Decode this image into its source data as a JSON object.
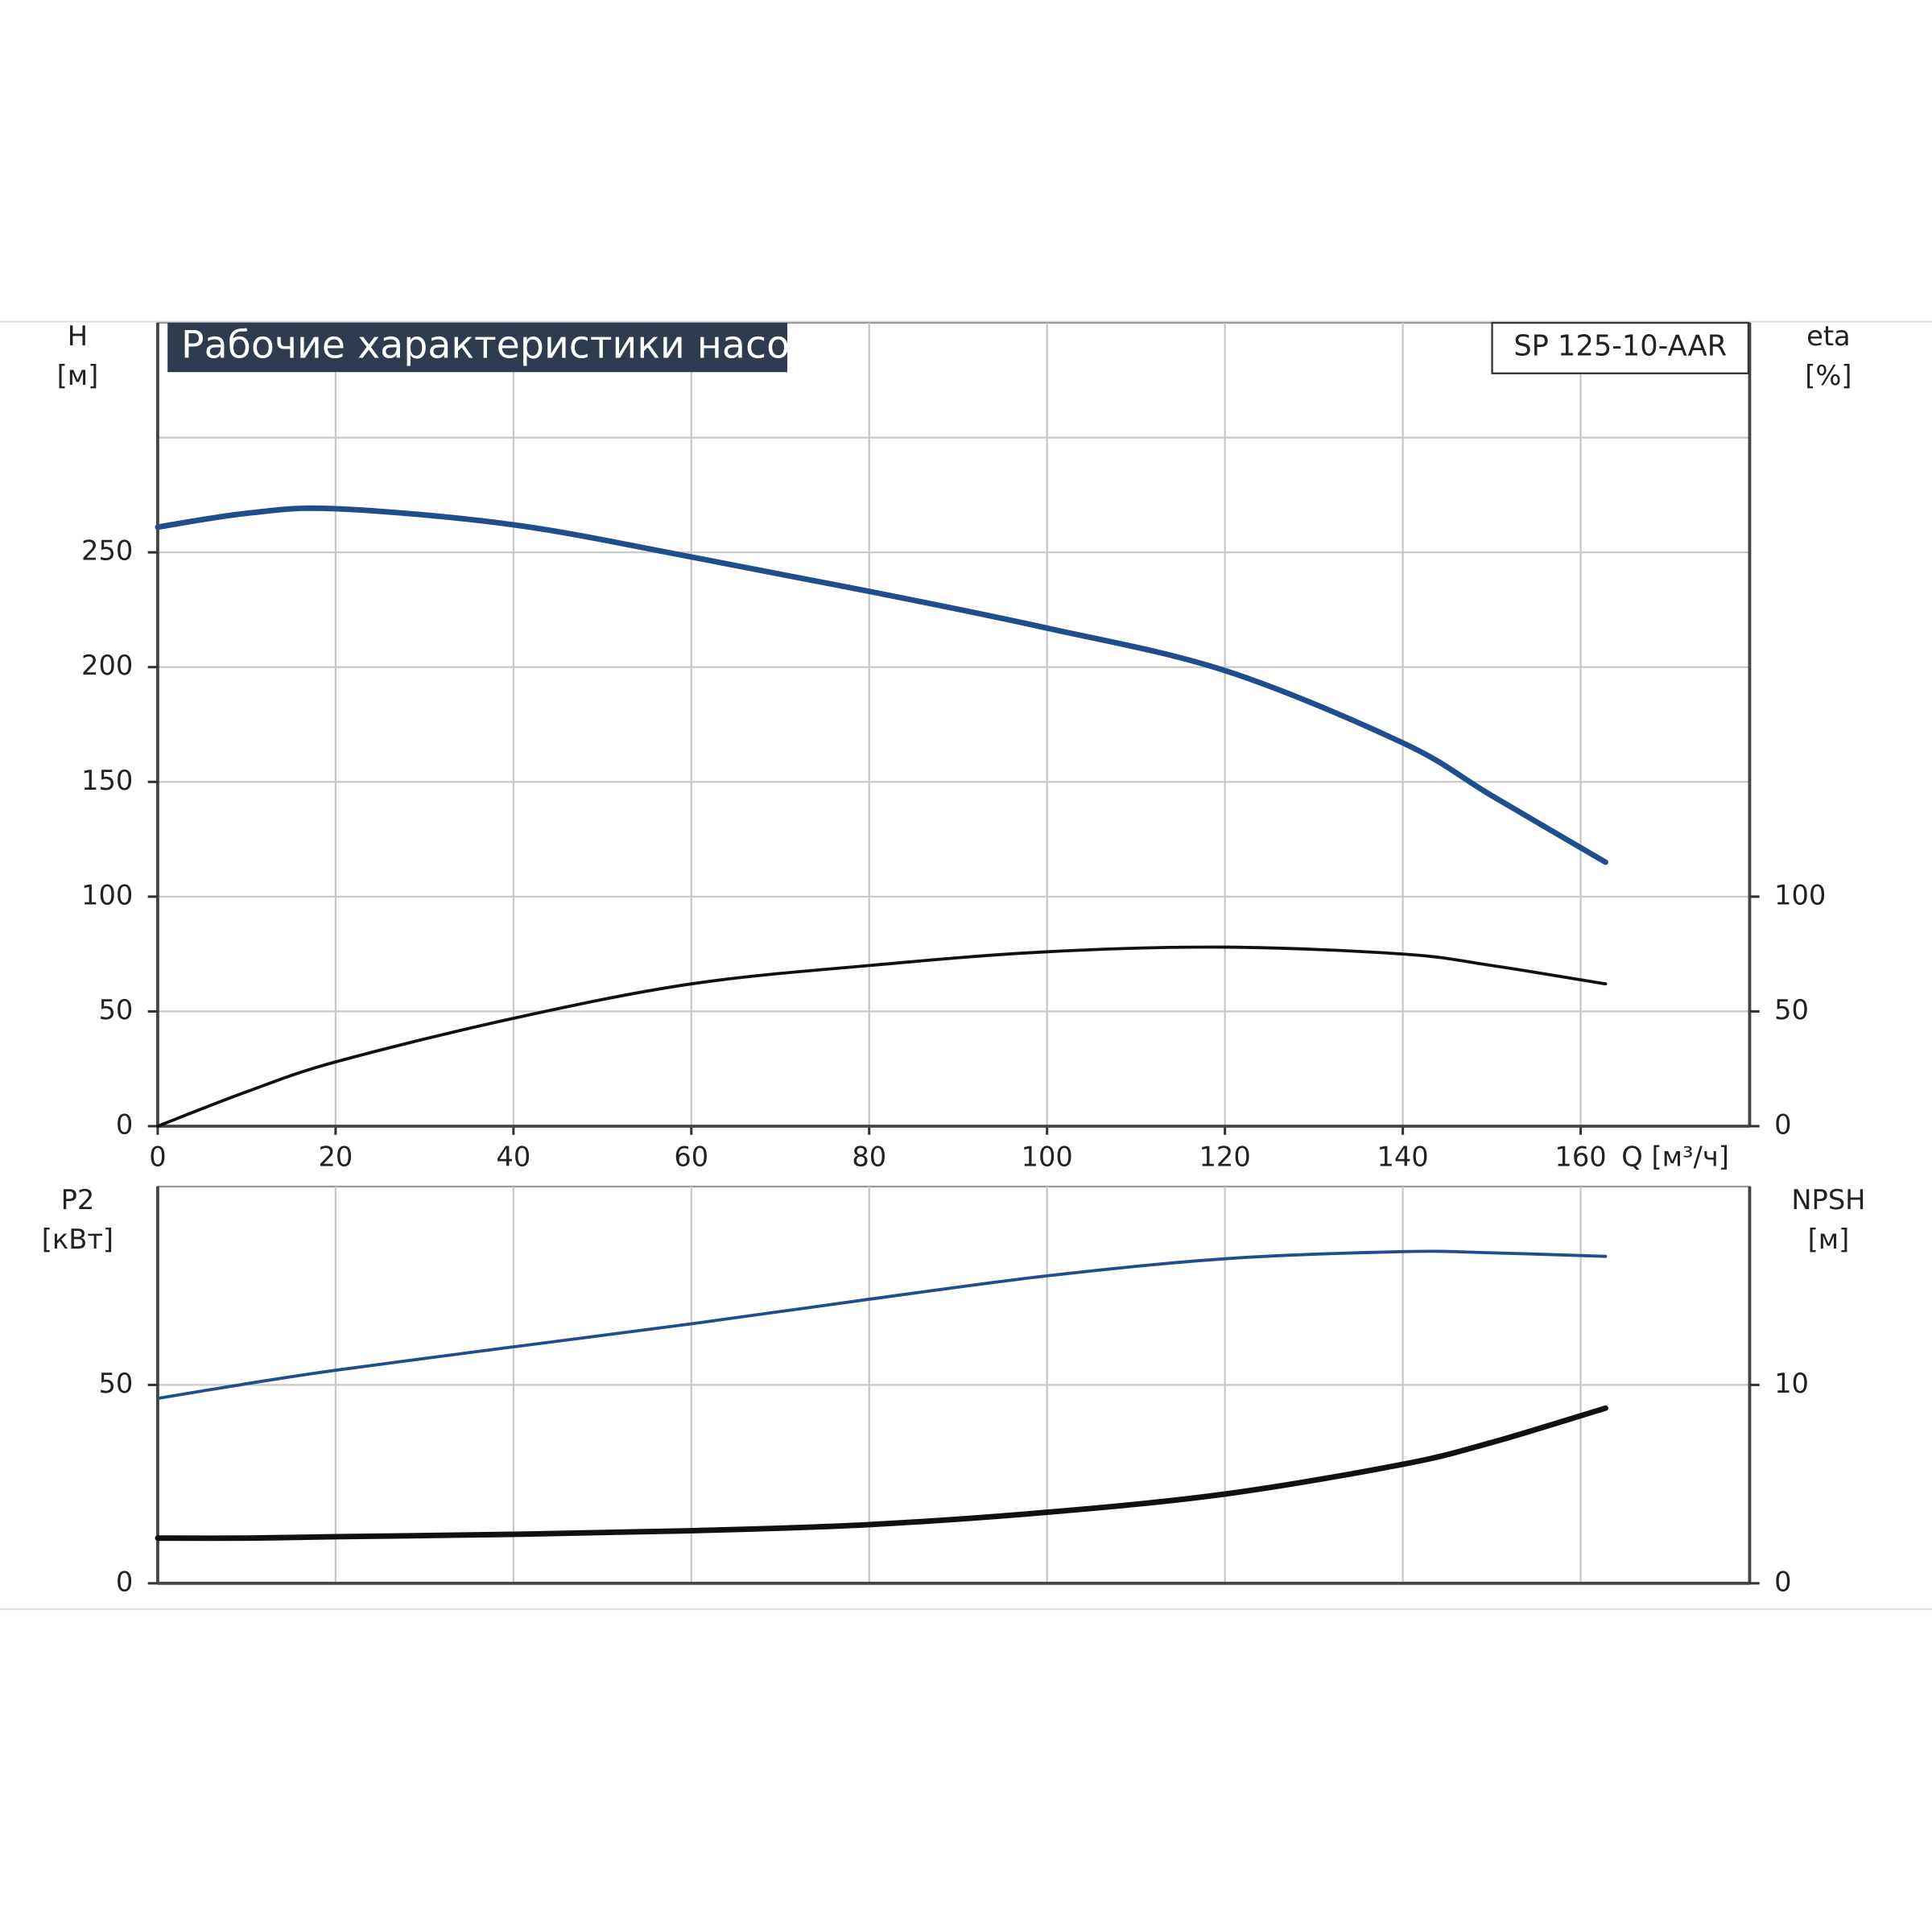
{
  "chart_data": [
    {
      "type": "line",
      "title": "Рабочие характеристики насоса",
      "model": "SP 125-10-AAR",
      "ylabel": [
        "H",
        "[м]"
      ],
      "y2label": [
        "eta",
        "[%]"
      ],
      "xlabel": "Q [м³/ч]",
      "x": [
        0,
        10,
        20,
        40,
        60,
        80,
        100,
        120,
        140,
        150,
        162.8
      ],
      "xlim": [
        0,
        179
      ],
      "xticks": [
        0,
        20,
        40,
        60,
        80,
        100,
        120,
        140,
        160
      ],
      "ylim": [
        0,
        350
      ],
      "yticks": [
        0,
        50,
        100,
        150,
        200,
        250
      ],
      "ygrid": [
        0,
        50,
        100,
        150,
        200,
        250,
        300
      ],
      "y2lim": [
        0,
        350
      ],
      "y2ticks": [
        0,
        50,
        100
      ],
      "series": [
        {
          "name": "H",
          "color": "#1f4e8c",
          "values": [
            261,
            267,
            269,
            262,
            248,
            233,
            217,
            198.5,
            167,
            144,
            115
          ]
        },
        {
          "name": "eta",
          "color": "#111111",
          "axis": "y2",
          "values": [
            0,
            15,
            28,
            47,
            62,
            70,
            76,
            78,
            75,
            70,
            62
          ]
        }
      ]
    },
    {
      "type": "line",
      "ylabel": [
        "P2",
        "[кВт]"
      ],
      "y2label": [
        "NPSH",
        "[м]"
      ],
      "x": [
        0,
        10,
        20,
        40,
        60,
        80,
        100,
        120,
        140,
        150,
        162.8
      ],
      "xlim": [
        0,
        179
      ],
      "xgrid": [
        20,
        40,
        60,
        80,
        100,
        120,
        140,
        160
      ],
      "ylim": [
        0,
        100
      ],
      "yticks": [
        0,
        50
      ],
      "ygrid": [
        50
      ],
      "y2lim": [
        0,
        20
      ],
      "y2ticks": [
        0,
        10
      ],
      "series": [
        {
          "name": "P2",
          "color": "#1f4e8c",
          "values": [
            46.6,
            50.3,
            53.7,
            59.6,
            65.4,
            71.6,
            77.5,
            81.8,
            83.6,
            83.3,
            82.4
          ]
        },
        {
          "name": "NPSH",
          "color": "#111111",
          "axis": "y2",
          "values": [
            2.28,
            2.28,
            2.35,
            2.47,
            2.65,
            2.96,
            3.58,
            4.5,
            6.0,
            7.1,
            8.83
          ]
        }
      ]
    }
  ]
}
